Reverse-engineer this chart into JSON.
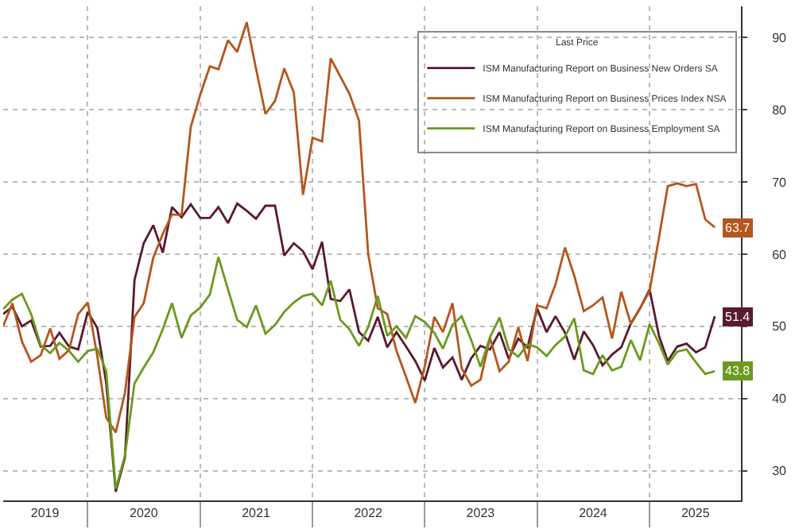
{
  "chart_data": {
    "type": "line",
    "legend_title": "Last Price",
    "legend": "top right",
    "grid": true,
    "marker": "none",
    "line_style": "solid",
    "x": [
      "2019-04",
      "2019-05",
      "2019-06",
      "2019-07",
      "2019-08",
      "2019-09",
      "2019-10",
      "2019-11",
      "2019-12",
      "2020-01",
      "2020-02",
      "2020-03",
      "2020-04",
      "2020-05",
      "2020-06",
      "2020-07",
      "2020-08",
      "2020-09",
      "2020-10",
      "2020-11",
      "2020-12",
      "2021-01",
      "2021-02",
      "2021-03",
      "2021-04",
      "2021-05",
      "2021-06",
      "2021-07",
      "2021-08",
      "2021-09",
      "2021-10",
      "2021-11",
      "2021-12",
      "2022-01",
      "2022-02",
      "2022-03",
      "2022-04",
      "2022-05",
      "2022-06",
      "2022-07",
      "2022-08",
      "2022-09",
      "2022-10",
      "2022-11",
      "2022-12",
      "2023-01",
      "2023-02",
      "2023-03",
      "2023-04",
      "2023-05",
      "2023-06",
      "2023-07",
      "2023-08",
      "2023-09",
      "2023-10",
      "2023-11",
      "2023-12",
      "2024-01",
      "2024-02",
      "2024-03",
      "2024-04",
      "2024-05",
      "2024-06",
      "2024-07",
      "2024-08",
      "2024-09",
      "2024-10",
      "2024-11",
      "2024-12",
      "2025-01",
      "2025-02",
      "2025-03",
      "2025-04",
      "2025-05",
      "2025-06",
      "2025-07",
      "2025-08"
    ],
    "series": [
      {
        "name": "ISM Manufacturing Report on Business New Orders SA",
        "color": "#5a1a2e",
        "values": [
          51.7,
          52.7,
          50.0,
          50.8,
          47.2,
          47.3,
          49.1,
          47.2,
          46.8,
          52.0,
          49.8,
          42.2,
          27.1,
          31.8,
          56.4,
          61.5,
          64.0,
          60.2,
          66.5,
          65.1,
          66.9,
          65.0,
          65.0,
          66.5,
          64.3,
          67.0,
          66.0,
          64.9,
          66.7,
          66.7,
          59.8,
          61.5,
          60.4,
          57.9,
          61.7,
          53.8,
          53.5,
          55.1,
          49.2,
          48.0,
          51.3,
          47.1,
          49.2,
          47.2,
          45.2,
          42.5,
          47.0,
          44.3,
          45.7,
          42.6,
          45.6,
          47.3,
          46.8,
          49.2,
          45.5,
          48.3,
          47.1,
          52.5,
          49.2,
          51.4,
          49.1,
          45.4,
          49.3,
          47.4,
          44.6,
          46.1,
          47.1,
          50.4,
          52.5,
          55.1,
          48.6,
          45.2,
          47.2,
          47.6,
          46.4,
          47.1,
          51.4
        ],
        "value_labels": [
          null,
          null,
          null,
          null,
          null,
          null,
          null,
          null,
          null,
          null,
          null,
          null,
          null,
          null,
          null,
          null,
          null,
          null,
          null,
          null,
          null,
          null,
          null,
          null,
          null,
          null,
          null,
          null,
          null,
          null,
          null,
          null,
          null,
          null,
          null,
          null,
          null,
          null,
          null,
          null,
          null,
          null,
          null,
          null,
          null,
          null,
          null,
          null,
          null,
          null,
          null,
          null,
          null,
          null,
          null,
          null,
          null,
          null,
          null,
          null,
          null,
          null,
          null,
          null,
          null,
          null,
          null,
          null,
          null,
          null,
          null,
          null,
          null,
          null,
          null,
          null,
          "51.4"
        ]
      },
      {
        "name": "ISM Manufacturing Report on Business Prices Index NSA",
        "color": "#b5561c",
        "values": [
          50.0,
          53.2,
          47.9,
          45.1,
          46.0,
          49.7,
          45.5,
          46.7,
          51.7,
          53.3,
          45.9,
          37.4,
          35.3,
          40.8,
          51.3,
          53.2,
          59.5,
          62.8,
          65.5,
          65.4,
          77.6,
          82.1,
          86.0,
          85.6,
          89.6,
          88.0,
          92.1,
          85.7,
          79.4,
          81.2,
          85.7,
          82.4,
          68.2,
          76.1,
          75.6,
          87.1,
          84.6,
          82.2,
          78.5,
          60.0,
          52.5,
          51.7,
          46.6,
          43.0,
          39.4,
          44.5,
          51.3,
          49.2,
          53.2,
          44.2,
          41.8,
          42.6,
          48.4,
          43.8,
          45.1,
          49.9,
          45.2,
          52.9,
          52.5,
          55.8,
          60.9,
          57.0,
          52.1,
          52.9,
          54.0,
          48.3,
          54.8,
          50.3,
          52.5,
          54.9,
          62.4,
          69.4,
          69.8,
          69.4,
          69.7,
          64.8,
          63.7
        ],
        "value_labels": [
          null,
          null,
          null,
          null,
          null,
          null,
          null,
          null,
          null,
          null,
          null,
          null,
          null,
          null,
          null,
          null,
          null,
          null,
          null,
          null,
          null,
          null,
          null,
          null,
          null,
          null,
          null,
          null,
          null,
          null,
          null,
          null,
          null,
          null,
          null,
          null,
          null,
          null,
          null,
          null,
          null,
          null,
          null,
          null,
          null,
          null,
          null,
          null,
          null,
          null,
          null,
          null,
          null,
          null,
          null,
          null,
          null,
          null,
          null,
          null,
          null,
          null,
          null,
          null,
          null,
          null,
          null,
          null,
          null,
          null,
          null,
          null,
          null,
          null,
          null,
          null,
          "63.7"
        ]
      },
      {
        "name": "ISM Manufacturing Report on Business Employment SA",
        "color": "#6a9a1f",
        "values": [
          52.4,
          53.7,
          54.5,
          51.7,
          47.4,
          46.3,
          47.7,
          46.6,
          45.1,
          46.6,
          46.9,
          43.8,
          27.5,
          32.1,
          42.1,
          44.3,
          46.4,
          49.6,
          53.2,
          48.4,
          51.5,
          52.6,
          54.4,
          59.6,
          55.1,
          50.9,
          49.9,
          52.9,
          49.0,
          50.2,
          52.0,
          53.3,
          54.2,
          54.5,
          52.9,
          56.3,
          50.9,
          49.6,
          47.3,
          49.9,
          54.2,
          48.7,
          50.0,
          48.4,
          51.4,
          50.6,
          49.1,
          46.9,
          50.2,
          51.4,
          48.1,
          44.4,
          48.5,
          51.2,
          46.8,
          45.8,
          47.5,
          47.1,
          45.9,
          47.4,
          48.6,
          51.1,
          43.9,
          43.4,
          46.0,
          43.9,
          44.4,
          48.1,
          45.3,
          50.3,
          47.6,
          44.7,
          46.5,
          46.8,
          45.0,
          43.4,
          43.8
        ],
        "value_labels": [
          null,
          null,
          null,
          null,
          null,
          null,
          null,
          null,
          null,
          null,
          null,
          null,
          null,
          null,
          null,
          null,
          null,
          null,
          null,
          null,
          null,
          null,
          null,
          null,
          null,
          null,
          null,
          null,
          null,
          null,
          null,
          null,
          null,
          null,
          null,
          null,
          null,
          null,
          null,
          null,
          null,
          null,
          null,
          null,
          null,
          null,
          null,
          null,
          null,
          null,
          null,
          null,
          null,
          null,
          null,
          null,
          null,
          null,
          null,
          null,
          null,
          null,
          null,
          null,
          null,
          null,
          null,
          null,
          null,
          null,
          null,
          null,
          null,
          null,
          null,
          null,
          "43.8"
        ]
      }
    ],
    "xlim": [
      "2019-04-01",
      "2025-10-25"
    ],
    "xticks": [
      {
        "value": "2019-08-15",
        "label": "2019"
      },
      {
        "value": "2020-01-01",
        "label": null
      },
      {
        "value": "2020-07-01",
        "label": "2020"
      },
      {
        "value": "2021-01-01",
        "label": null
      },
      {
        "value": "2021-07-01",
        "label": "2021"
      },
      {
        "value": "2022-01-01",
        "label": null
      },
      {
        "value": "2022-07-01",
        "label": "2022"
      },
      {
        "value": "2023-01-01",
        "label": null
      },
      {
        "value": "2023-07-01",
        "label": "2023"
      },
      {
        "value": "2024-01-01",
        "label": null
      },
      {
        "value": "2024-07-01",
        "label": "2024"
      },
      {
        "value": "2025-01-01",
        "label": null
      },
      {
        "value": "2025-05-30",
        "label": "2025"
      }
    ],
    "ylim": [
      25.9,
      94.3
    ],
    "yticks": [
      30,
      40,
      50,
      60,
      70,
      80,
      90
    ]
  }
}
